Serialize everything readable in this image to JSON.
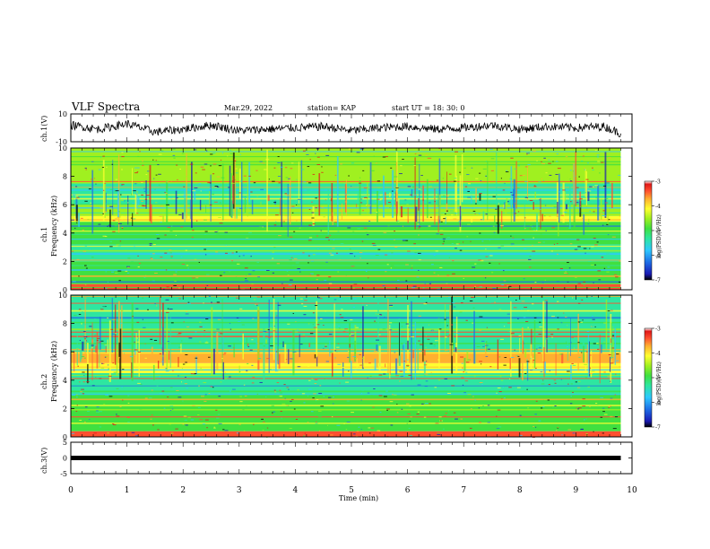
{
  "header": {
    "title": "VLF Spectra",
    "date": "Mar.29, 2022",
    "station": "station= KAP",
    "start": "start  UT =   18: 30: 0"
  },
  "colorbar": {
    "label": "log(PSD)(V²/Hz)",
    "ticks": [
      "-3",
      "-4",
      "-5",
      "-6",
      "-7"
    ],
    "colors": [
      "#000000",
      "#1a1ab4",
      "#1e6ee6",
      "#2ec8ff",
      "#2ee6a0",
      "#40e040",
      "#a0f020",
      "#ffff30",
      "#ffb030",
      "#ff5030",
      "#e01818",
      "#ffffff"
    ]
  },
  "chart_data": [
    {
      "type": "line",
      "name": "ch1-waveform",
      "ylabel": "ch.1(V)",
      "ylim": [
        -10,
        10
      ],
      "y_ticklabels": [
        "10",
        "-10"
      ],
      "xlim": [
        0,
        10
      ],
      "x": [
        0,
        0.5,
        1,
        1.5,
        2,
        2.5,
        3,
        3.5,
        4,
        4.5,
        5,
        5.5,
        6,
        6.5,
        7,
        7.5,
        8,
        8.5,
        9,
        9.5,
        9.8
      ],
      "y": [
        2,
        -1,
        3,
        -3,
        -1,
        2,
        -2,
        -1,
        0,
        1,
        -2,
        0,
        1,
        -1,
        0,
        2,
        -1,
        1,
        0,
        1,
        -4
      ]
    },
    {
      "type": "heatmap",
      "name": "ch1-spectrogram",
      "ylabel": "ch.1 Frequency (kHz)",
      "xlim": [
        0,
        10
      ],
      "ylim": [
        0,
        10
      ],
      "y_ticklabels": [
        "0",
        "2",
        "4",
        "6",
        "8",
        "10"
      ],
      "z_range": [
        -7,
        -3
      ],
      "bands": [
        {
          "f": [
            0.0,
            0.4
          ],
          "level": -3.6
        },
        {
          "f": [
            0.4,
            2.0
          ],
          "level": -4.9
        },
        {
          "f": [
            2.0,
            3.2
          ],
          "level": -5.2
        },
        {
          "f": [
            3.2,
            4.8
          ],
          "level": -4.9
        },
        {
          "f": [
            4.8,
            5.2
          ],
          "level": -4.3
        },
        {
          "f": [
            5.2,
            6.0
          ],
          "level": -4.6
        },
        {
          "f": [
            6.0,
            7.5
          ],
          "level": -5.3
        },
        {
          "f": [
            7.5,
            10.0
          ],
          "level": -4.8
        }
      ]
    },
    {
      "type": "heatmap",
      "name": "ch2-spectrogram",
      "ylabel": "ch.2 Frequency (kHz)",
      "xlim": [
        0,
        10
      ],
      "ylim": [
        0,
        10
      ],
      "y_ticklabels": [
        "0",
        "2",
        "4",
        "6",
        "8",
        "10"
      ],
      "z_range": [
        -7,
        -3
      ],
      "bands": [
        {
          "f": [
            0.0,
            0.4
          ],
          "level": -3.5
        },
        {
          "f": [
            0.4,
            3.0
          ],
          "level": -5.0
        },
        {
          "f": [
            3.0,
            4.5
          ],
          "level": -5.4
        },
        {
          "f": [
            4.5,
            5.2
          ],
          "level": -4.4
        },
        {
          "f": [
            5.2,
            6.0
          ],
          "level": -3.8
        },
        {
          "f": [
            6.0,
            7.5
          ],
          "level": -5.2
        },
        {
          "f": [
            7.5,
            10.0
          ],
          "level": -5.4
        }
      ]
    },
    {
      "type": "line",
      "name": "ch3-waveform",
      "ylabel": "ch.3(V)",
      "ylim": [
        -5,
        5
      ],
      "y_ticklabels": [
        "5",
        "0",
        "-5"
      ],
      "xlim": [
        0,
        10
      ],
      "x": [
        0,
        9.8
      ],
      "y": [
        0,
        0
      ],
      "xlabel": "Time  (min)",
      "x_ticklabels": [
        "0",
        "1",
        "2",
        "3",
        "4",
        "5",
        "6",
        "7",
        "8",
        "9",
        "10"
      ]
    }
  ]
}
